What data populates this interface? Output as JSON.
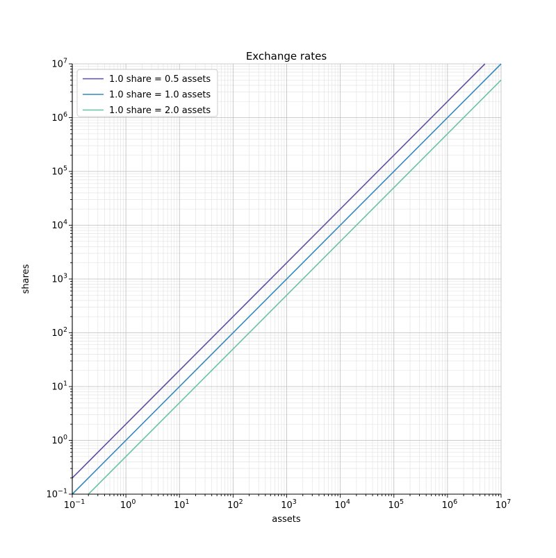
{
  "figure": {
    "background": "#ffffff"
  },
  "chart_data": {
    "type": "line",
    "title": "Exchange rates",
    "xlabel": "assets",
    "ylabel": "shares",
    "x_scale": "log",
    "y_scale": "log",
    "xlim": [
      0.1,
      10000000
    ],
    "ylim": [
      0.1,
      10000000
    ],
    "x_tick_exponents": [
      -1,
      0,
      1,
      2,
      3,
      4,
      5,
      6,
      7
    ],
    "y_tick_exponents": [
      -1,
      0,
      1,
      2,
      3,
      4,
      5,
      6,
      7
    ],
    "grid": {
      "major": true,
      "minor": true,
      "major_color": "#bdbdbd",
      "minor_color": "#e4e4e4"
    },
    "axes": {
      "spine_color": "#000000",
      "visible_spines": [
        "left",
        "bottom"
      ]
    },
    "legend": {
      "position": "upper-left",
      "border_color": "#cccccc",
      "background": "#ffffff"
    },
    "series": [
      {
        "name": "1.0 share = 0.5 assets",
        "color": "#5e4fa2",
        "assets_per_share": 0.5,
        "points": [
          [
            0.1,
            0.2
          ],
          [
            5000000,
            10000000
          ]
        ]
      },
      {
        "name": "1.0 share = 1.0 assets",
        "color": "#3288bd",
        "assets_per_share": 1.0,
        "points": [
          [
            0.1,
            0.1
          ],
          [
            10000000,
            10000000
          ]
        ]
      },
      {
        "name": "1.0 share = 2.0 assets",
        "color": "#66c2a5",
        "assets_per_share": 2.0,
        "points": [
          [
            0.2,
            0.1
          ],
          [
            10000000,
            5000000
          ]
        ]
      }
    ]
  }
}
